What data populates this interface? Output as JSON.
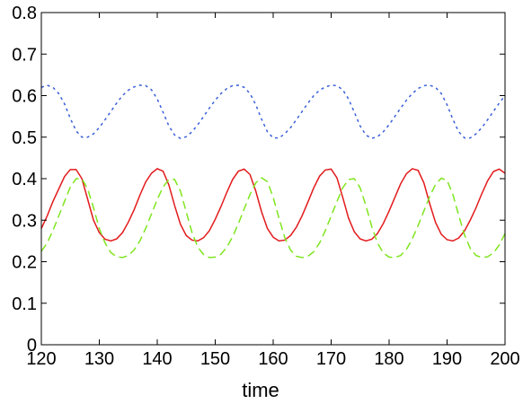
{
  "chart_data": {
    "type": "line",
    "title": "",
    "xlabel": "time",
    "ylabel": "",
    "xlim": [
      120,
      200
    ],
    "ylim": [
      0,
      0.8
    ],
    "xticks": [
      120,
      130,
      140,
      150,
      160,
      170,
      180,
      190,
      200
    ],
    "xtick_labels": [
      "120",
      "130",
      "140",
      "150",
      "160",
      "170",
      "180",
      "190",
      "200"
    ],
    "yticks": [
      0,
      0.1,
      0.2,
      0.3,
      0.4,
      0.5,
      0.6,
      0.7,
      0.8
    ],
    "ytick_labels": [
      "0",
      "0.1",
      "0.2",
      "0.3",
      "0.4",
      "0.5",
      "0.6",
      "0.7",
      "0.8"
    ],
    "grid": false,
    "legend": "none",
    "x": [
      120,
      121,
      122,
      123,
      124,
      125,
      126,
      127,
      128,
      129,
      130,
      131,
      132,
      133,
      134,
      135,
      136,
      137,
      138,
      139,
      140,
      141,
      142,
      143,
      144,
      145,
      146,
      147,
      148,
      149,
      150,
      151,
      152,
      153,
      154,
      155,
      156,
      157,
      158,
      159,
      160,
      161,
      162,
      163,
      164,
      165,
      166,
      167,
      168,
      169,
      170,
      171,
      172,
      173,
      174,
      175,
      176,
      177,
      178,
      179,
      180,
      181,
      182,
      183,
      184,
      185,
      186,
      187,
      188,
      189,
      190,
      191,
      192,
      193,
      194,
      195,
      196,
      197,
      198,
      199,
      200
    ],
    "series": [
      {
        "color": "#3a5fd9",
        "style": "dotted",
        "values": [
          0.62,
          0.625,
          0.62,
          0.605,
          0.58,
          0.545,
          0.515,
          0.5,
          0.5,
          0.508,
          0.523,
          0.542,
          0.562,
          0.582,
          0.6,
          0.613,
          0.621,
          0.625,
          0.624,
          0.614,
          0.592,
          0.56,
          0.527,
          0.505,
          0.497,
          0.501,
          0.513,
          0.53,
          0.55,
          0.57,
          0.589,
          0.605,
          0.617,
          0.624,
          0.625,
          0.62,
          0.605,
          0.578,
          0.543,
          0.513,
          0.498,
          0.498,
          0.508,
          0.523,
          0.542,
          0.562,
          0.582,
          0.6,
          0.613,
          0.621,
          0.625,
          0.624,
          0.614,
          0.592,
          0.56,
          0.527,
          0.505,
          0.497,
          0.501,
          0.513,
          0.53,
          0.55,
          0.57,
          0.589,
          0.605,
          0.617,
          0.624,
          0.625,
          0.62,
          0.605,
          0.578,
          0.543,
          0.513,
          0.498,
          0.498,
          0.508,
          0.523,
          0.542,
          0.562,
          0.582,
          0.6
        ]
      },
      {
        "color": "#e31a1c",
        "style": "solid",
        "values": [
          0.28,
          0.31,
          0.345,
          0.375,
          0.405,
          0.422,
          0.422,
          0.4,
          0.35,
          0.3,
          0.27,
          0.254,
          0.25,
          0.255,
          0.27,
          0.295,
          0.325,
          0.36,
          0.392,
          0.413,
          0.424,
          0.418,
          0.385,
          0.335,
          0.29,
          0.263,
          0.252,
          0.25,
          0.258,
          0.275,
          0.302,
          0.333,
          0.367,
          0.398,
          0.418,
          0.423,
          0.41,
          0.37,
          0.32,
          0.28,
          0.259,
          0.25,
          0.252,
          0.263,
          0.283,
          0.311,
          0.344,
          0.378,
          0.406,
          0.421,
          0.423,
          0.402,
          0.355,
          0.305,
          0.272,
          0.255,
          0.25,
          0.254,
          0.268,
          0.292,
          0.322,
          0.355,
          0.388,
          0.412,
          0.424,
          0.42,
          0.39,
          0.34,
          0.295,
          0.266,
          0.253,
          0.25,
          0.257,
          0.274,
          0.3,
          0.33,
          0.364,
          0.395,
          0.417,
          0.423,
          0.413
        ]
      },
      {
        "color": "#7fe51f",
        "style": "dashed",
        "values": [
          0.225,
          0.245,
          0.275,
          0.31,
          0.345,
          0.38,
          0.4,
          0.4,
          0.375,
          0.33,
          0.28,
          0.245,
          0.222,
          0.212,
          0.21,
          0.215,
          0.228,
          0.25,
          0.28,
          0.315,
          0.35,
          0.38,
          0.398,
          0.398,
          0.37,
          0.32,
          0.27,
          0.235,
          0.217,
          0.21,
          0.211,
          0.218,
          0.235,
          0.26,
          0.292,
          0.327,
          0.362,
          0.39,
          0.402,
          0.393,
          0.355,
          0.305,
          0.258,
          0.228,
          0.213,
          0.21,
          0.213,
          0.224,
          0.245,
          0.275,
          0.31,
          0.345,
          0.378,
          0.398,
          0.4,
          0.378,
          0.335,
          0.285,
          0.245,
          0.221,
          0.211,
          0.21,
          0.215,
          0.23,
          0.255,
          0.287,
          0.322,
          0.357,
          0.386,
          0.401,
          0.396,
          0.362,
          0.312,
          0.265,
          0.232,
          0.215,
          0.21,
          0.212,
          0.221,
          0.24,
          0.268
        ]
      }
    ]
  }
}
